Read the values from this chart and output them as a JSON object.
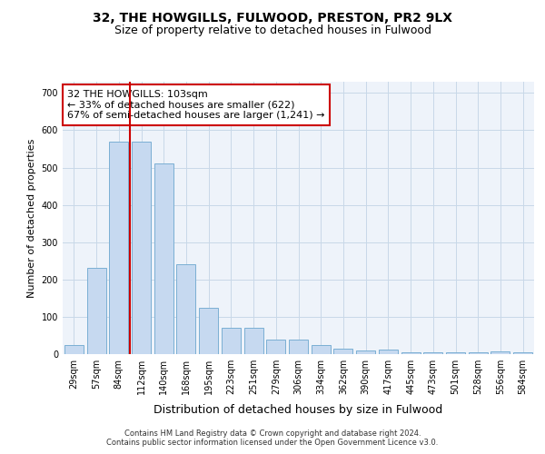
{
  "title": "32, THE HOWGILLS, FULWOOD, PRESTON, PR2 9LX",
  "subtitle": "Size of property relative to detached houses in Fulwood",
  "xlabel": "Distribution of detached houses by size in Fulwood",
  "ylabel": "Number of detached properties",
  "categories": [
    "29sqm",
    "57sqm",
    "84sqm",
    "112sqm",
    "140sqm",
    "168sqm",
    "195sqm",
    "223sqm",
    "251sqm",
    "279sqm",
    "306sqm",
    "334sqm",
    "362sqm",
    "390sqm",
    "417sqm",
    "445sqm",
    "473sqm",
    "501sqm",
    "528sqm",
    "556sqm",
    "584sqm"
  ],
  "values": [
    25,
    230,
    570,
    570,
    510,
    240,
    125,
    70,
    70,
    40,
    40,
    25,
    15,
    10,
    12,
    5,
    5,
    5,
    5,
    8,
    5
  ],
  "bar_color": "#c6d9f0",
  "bar_edge_color": "#7bafd4",
  "grid_color": "#c8d8e8",
  "bg_color": "#eef3fa",
  "property_line_x": 2.5,
  "property_line_color": "#cc0000",
  "annotation_text": "32 THE HOWGILLS: 103sqm\n← 33% of detached houses are smaller (622)\n67% of semi-detached houses are larger (1,241) →",
  "annotation_box_color": "#cc0000",
  "footer_line1": "Contains HM Land Registry data © Crown copyright and database right 2024.",
  "footer_line2": "Contains public sector information licensed under the Open Government Licence v3.0.",
  "ylim": [
    0,
    730
  ],
  "yticks": [
    0,
    100,
    200,
    300,
    400,
    500,
    600,
    700
  ],
  "title_fontsize": 10,
  "subtitle_fontsize": 9,
  "ylabel_fontsize": 8,
  "xlabel_fontsize": 9,
  "tick_fontsize": 7,
  "footer_fontsize": 6,
  "annot_fontsize": 8
}
